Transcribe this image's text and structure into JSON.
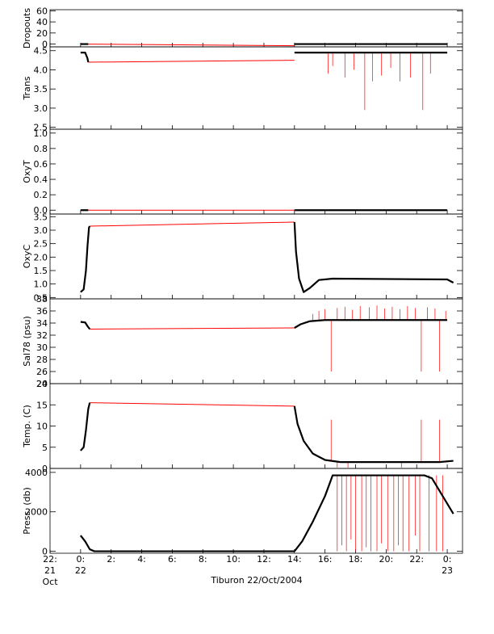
{
  "chart_data": {
    "type": "line",
    "xlabel": "Tiburon 22/Oct/2004",
    "xlim": [
      -2,
      25
    ],
    "x_ticks": [
      {
        "x": -2,
        "line1": "22:",
        "line2": "21",
        "line3": "Oct"
      },
      {
        "x": 0,
        "line1": "0:",
        "line2": "22",
        "line3": ""
      },
      {
        "x": 2,
        "line1": "2:",
        "line2": "",
        "line3": ""
      },
      {
        "x": 4,
        "line1": "4:",
        "line2": "",
        "line3": ""
      },
      {
        "x": 6,
        "line1": "6:",
        "line2": "",
        "line3": ""
      },
      {
        "x": 8,
        "line1": "8:",
        "line2": "",
        "line3": ""
      },
      {
        "x": 10,
        "line1": "10:",
        "line2": "",
        "line3": ""
      },
      {
        "x": 12,
        "line1": "12:",
        "line2": "",
        "line3": ""
      },
      {
        "x": 14,
        "line1": "14:",
        "line2": "",
        "line3": ""
      },
      {
        "x": 16,
        "line1": "16:",
        "line2": "",
        "line3": ""
      },
      {
        "x": 18,
        "line1": "18:",
        "line2": "",
        "line3": ""
      },
      {
        "x": 20,
        "line1": "20:",
        "line2": "",
        "line3": ""
      },
      {
        "x": 22,
        "line1": "22:",
        "line2": "",
        "line3": ""
      },
      {
        "x": 24,
        "line1": "0:",
        "line2": "23",
        "line3": ""
      }
    ],
    "colors": {
      "black": "#000000",
      "red": "#ff0000"
    },
    "panels": [
      {
        "ylabel": "Dropouts",
        "ylim": [
          -5,
          62
        ],
        "yticks": [
          0,
          20,
          40,
          60
        ],
        "ytick_labels": [
          "0",
          "20",
          "40",
          "60"
        ],
        "red_segments": [
          [
            [
              0,
              0
            ],
            [
              14,
              -3
            ]
          ]
        ],
        "black_segments": [
          [
            [
              0,
              0
            ],
            [
              0.5,
              0
            ]
          ],
          [
            [
              14,
              0
            ],
            [
              24,
              0
            ]
          ]
        ],
        "spikes": []
      },
      {
        "ylabel": "Trans",
        "ylim": [
          2.45,
          4.6
        ],
        "yticks": [
          2.5,
          3.0,
          3.5,
          4.0,
          4.5
        ],
        "ytick_labels": [
          "2.5",
          "3.0",
          "3.5",
          "4.0",
          "4.5"
        ],
        "red_segments": [
          [
            [
              0.5,
              4.2
            ],
            [
              14,
              4.25
            ]
          ]
        ],
        "black_segments": [
          [
            [
              0,
              4.45
            ],
            [
              0.3,
              4.45
            ],
            [
              0.45,
              4.3
            ],
            [
              0.5,
              4.2
            ]
          ],
          [
            [
              14,
              4.45
            ],
            [
              24,
              4.45
            ]
          ]
        ],
        "spikes": [
          {
            "x": 16.2,
            "y": 3.9,
            "base": 4.45
          },
          {
            "x": 16.5,
            "y": 4.1,
            "base": 4.45
          },
          {
            "x": 17.3,
            "y": 3.8,
            "base": 4.45
          },
          {
            "x": 17.9,
            "y": 4.0,
            "base": 4.45
          },
          {
            "x": 18.6,
            "y": 2.95,
            "base": 4.45
          },
          {
            "x": 19.1,
            "y": 3.7,
            "base": 4.45
          },
          {
            "x": 19.7,
            "y": 3.85,
            "base": 4.45
          },
          {
            "x": 20.3,
            "y": 4.05,
            "base": 4.45
          },
          {
            "x": 20.9,
            "y": 3.7,
            "base": 4.45
          },
          {
            "x": 21.6,
            "y": 3.8,
            "base": 4.45
          },
          {
            "x": 22.4,
            "y": 2.95,
            "base": 4.45
          },
          {
            "x": 22.9,
            "y": 3.9,
            "base": 4.45
          }
        ]
      },
      {
        "ylabel": "OxyT",
        "ylim": [
          -0.05,
          1.05
        ],
        "yticks": [
          0.0,
          0.2,
          0.4,
          0.6,
          0.8,
          1.0
        ],
        "ytick_labels": [
          "0.0",
          "0.2",
          "0.4",
          "0.6",
          "0.8",
          "1.0"
        ],
        "red_segments": [
          [
            [
              0,
              0
            ],
            [
              14,
              0
            ]
          ]
        ],
        "black_segments": [
          [
            [
              0,
              0
            ],
            [
              0.5,
              0
            ]
          ],
          [
            [
              14,
              0
            ],
            [
              24,
              0
            ]
          ]
        ],
        "spikes": []
      },
      {
        "ylabel": "OxyC",
        "ylim": [
          0.45,
          3.6
        ],
        "yticks": [
          0.5,
          1.0,
          1.5,
          2.0,
          2.5,
          3.0,
          3.5
        ],
        "ytick_labels": [
          "0.5",
          "1.0",
          "1.5",
          "2.0",
          "2.5",
          "3.0",
          "3.5"
        ],
        "red_segments": [
          [
            [
              0.6,
              3.15
            ],
            [
              14,
              3.3
            ]
          ]
        ],
        "black_segments": [
          [
            [
              0,
              0.7
            ],
            [
              0.2,
              0.8
            ],
            [
              0.35,
              1.5
            ],
            [
              0.45,
              2.4
            ],
            [
              0.55,
              3.1
            ],
            [
              0.6,
              3.15
            ]
          ],
          [
            [
              14,
              3.3
            ],
            [
              14.1,
              2.2
            ],
            [
              14.3,
              1.2
            ],
            [
              14.6,
              0.7
            ],
            [
              15.0,
              0.85
            ],
            [
              15.6,
              1.15
            ],
            [
              16.5,
              1.2
            ],
            [
              24,
              1.17
            ],
            [
              24.4,
              1.05
            ]
          ]
        ],
        "spikes": []
      },
      {
        "ylabel": "Sal78 (psu)",
        "ylim": [
          24,
          38
        ],
        "yticks": [
          24,
          26,
          28,
          30,
          32,
          34,
          36,
          38
        ],
        "ytick_labels": [
          "24",
          "26",
          "28",
          "30",
          "32",
          "34",
          "36",
          "38"
        ],
        "red_segments": [
          [
            [
              0.6,
              33.0
            ],
            [
              14,
              33.2
            ]
          ]
        ],
        "black_segments": [
          [
            [
              0,
              34.2
            ],
            [
              0.3,
              34.1
            ],
            [
              0.45,
              33.5
            ],
            [
              0.6,
              33.0
            ]
          ],
          [
            [
              14,
              33.2
            ],
            [
              14.4,
              33.8
            ],
            [
              15.0,
              34.3
            ],
            [
              16.0,
              34.5
            ],
            [
              24,
              34.5
            ]
          ]
        ],
        "spikes": [
          {
            "x": 15.2,
            "y": 35.5,
            "base": 34.4
          },
          {
            "x": 15.6,
            "y": 36.0,
            "base": 34.5
          },
          {
            "x": 16.0,
            "y": 36.3,
            "base": 34.5
          },
          {
            "x": 16.4,
            "y": 26.0,
            "base": 34.5
          },
          {
            "x": 16.8,
            "y": 36.5,
            "base": 34.5
          },
          {
            "x": 17.3,
            "y": 36.7,
            "base": 34.5
          },
          {
            "x": 17.8,
            "y": 36.2,
            "base": 34.5
          },
          {
            "x": 18.3,
            "y": 36.8,
            "base": 34.5
          },
          {
            "x": 18.9,
            "y": 36.6,
            "base": 34.5
          },
          {
            "x": 19.4,
            "y": 36.9,
            "base": 34.5
          },
          {
            "x": 19.9,
            "y": 36.4,
            "base": 34.5
          },
          {
            "x": 20.4,
            "y": 36.7,
            "base": 34.5
          },
          {
            "x": 20.9,
            "y": 36.3,
            "base": 34.5
          },
          {
            "x": 21.4,
            "y": 36.8,
            "base": 34.5
          },
          {
            "x": 21.9,
            "y": 36.5,
            "base": 34.5
          },
          {
            "x": 22.3,
            "y": 26.0,
            "base": 34.5
          },
          {
            "x": 22.7,
            "y": 36.6,
            "base": 34.5
          },
          {
            "x": 23.2,
            "y": 36.4,
            "base": 34.5
          },
          {
            "x": 23.5,
            "y": 26.0,
            "base": 34.5
          },
          {
            "x": 23.9,
            "y": 36.0,
            "base": 34.5
          }
        ]
      },
      {
        "ylabel": "Temp. (C)",
        "ylim": [
          0,
          20
        ],
        "yticks": [
          0,
          5,
          10,
          15,
          20
        ],
        "ytick_labels": [
          "0",
          "5",
          "10",
          "15",
          "20"
        ],
        "red_segments": [
          [
            [
              0.6,
              15.5
            ],
            [
              14,
              14.7
            ]
          ]
        ],
        "black_segments": [
          [
            [
              0,
              4.2
            ],
            [
              0.2,
              5.0
            ],
            [
              0.35,
              9.0
            ],
            [
              0.5,
              14.0
            ],
            [
              0.6,
              15.5
            ]
          ],
          [
            [
              14,
              14.7
            ],
            [
              14.2,
              10.5
            ],
            [
              14.6,
              6.5
            ],
            [
              15.2,
              3.5
            ],
            [
              16.0,
              2.0
            ],
            [
              17.0,
              1.5
            ],
            [
              23.5,
              1.5
            ],
            [
              24.4,
              1.8
            ]
          ]
        ],
        "spikes": [
          {
            "x": 16.4,
            "y": 11.5,
            "base": 1.6
          },
          {
            "x": 16.8,
            "y": 0.2,
            "base": 1.5
          },
          {
            "x": 17.5,
            "y": 0.2,
            "base": 1.5
          },
          {
            "x": 21.0,
            "y": 0.2,
            "base": 1.5
          },
          {
            "x": 22.3,
            "y": 11.5,
            "base": 1.5
          },
          {
            "x": 23.5,
            "y": 11.5,
            "base": 1.5
          }
        ]
      },
      {
        "ylabel": "Press. (db)",
        "ylim": [
          -100,
          4200
        ],
        "yticks": [
          0,
          2000,
          4000
        ],
        "ytick_labels": [
          "0",
          "2000",
          "4000"
        ],
        "red_segments": [],
        "black_segments": [
          [
            [
              0,
              800
            ],
            [
              0.3,
              500
            ],
            [
              0.6,
              100
            ],
            [
              0.9,
              0
            ],
            [
              14,
              0
            ]
          ],
          [
            [
              14,
              0
            ],
            [
              14.5,
              500
            ],
            [
              15.2,
              1500
            ],
            [
              16.0,
              2800
            ],
            [
              16.5,
              3850
            ],
            [
              22.5,
              3850
            ],
            [
              23.0,
              3700
            ],
            [
              24.4,
              1900
            ]
          ]
        ],
        "spikes": [
          {
            "x": 16.8,
            "y": 0,
            "base": 3850
          },
          {
            "x": 17.1,
            "y": 300,
            "base": 3850
          },
          {
            "x": 17.4,
            "y": 0,
            "base": 3850
          },
          {
            "x": 17.7,
            "y": 600,
            "base": 3850
          },
          {
            "x": 18.0,
            "y": 0,
            "base": 3850
          },
          {
            "x": 18.4,
            "y": 0,
            "base": 3850
          },
          {
            "x": 18.7,
            "y": 200,
            "base": 3850
          },
          {
            "x": 19.0,
            "y": 0,
            "base": 3850
          },
          {
            "x": 19.4,
            "y": 0,
            "base": 3850
          },
          {
            "x": 19.7,
            "y": 400,
            "base": 3850
          },
          {
            "x": 20.1,
            "y": 0,
            "base": 3850
          },
          {
            "x": 20.5,
            "y": 0,
            "base": 3850
          },
          {
            "x": 20.8,
            "y": 300,
            "base": 3850
          },
          {
            "x": 21.1,
            "y": 0,
            "base": 3850
          },
          {
            "x": 21.5,
            "y": 0,
            "base": 3850
          },
          {
            "x": 21.9,
            "y": 800,
            "base": 3850
          },
          {
            "x": 22.2,
            "y": 0,
            "base": 3850
          },
          {
            "x": 22.8,
            "y": 0,
            "base": 3850
          },
          {
            "x": 23.3,
            "y": 0,
            "base": 3850
          },
          {
            "x": 23.7,
            "y": 0,
            "base": 3850
          }
        ]
      }
    ]
  }
}
